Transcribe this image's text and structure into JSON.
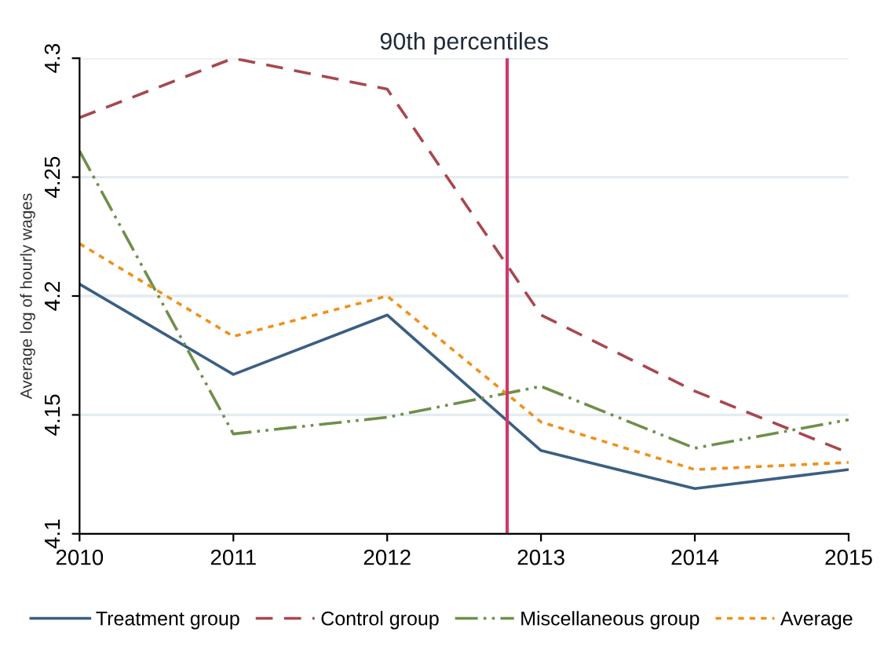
{
  "chart_data": {
    "type": "line",
    "title": "90th percentiles",
    "ylabel": "Average log of hourly wages",
    "x": [
      2010,
      2011,
      2012,
      2013,
      2014,
      2015
    ],
    "xlim": [
      2010,
      2015
    ],
    "xticks": [
      2010,
      2011,
      2012,
      2013,
      2014,
      2015
    ],
    "ylim": [
      4.1,
      4.3
    ],
    "yticks": [
      4.1,
      4.15,
      4.2,
      4.25,
      4.3
    ],
    "grid": "y",
    "legend": "bottom",
    "series": [
      {
        "name": "Treatment group",
        "color": "#3b5f83",
        "line_style": "solid",
        "values": [
          4.205,
          4.167,
          4.192,
          4.135,
          4.119,
          4.127
        ]
      },
      {
        "name": "Control group",
        "color": "#a8474f",
        "line_style": "dashed",
        "values": [
          4.275,
          4.3,
          4.287,
          4.192,
          4.16,
          4.134
        ]
      },
      {
        "name": "Miscellaneous group",
        "color": "#6f8f4a",
        "line_style": "dashdotdot",
        "values": [
          4.261,
          4.142,
          4.149,
          4.162,
          4.136,
          4.148
        ]
      },
      {
        "name": "Average",
        "color": "#f0901a",
        "line_style": "dotted",
        "values": [
          4.222,
          4.183,
          4.2,
          4.147,
          4.127,
          4.13
        ]
      }
    ],
    "ref_lines": [
      {
        "axis": "x",
        "value": 2012.78,
        "color": "#d0386a",
        "line_style": "solid"
      }
    ]
  }
}
